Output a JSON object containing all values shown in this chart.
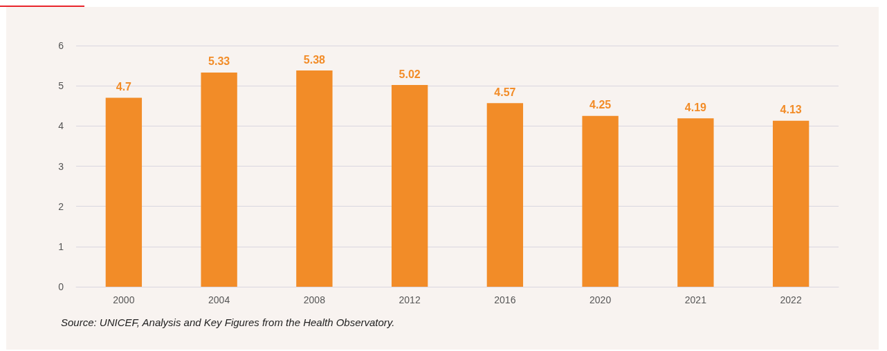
{
  "chart_data": {
    "type": "bar",
    "categories": [
      "2000",
      "2004",
      "2008",
      "2012",
      "2016",
      "2020",
      "2021",
      "2022"
    ],
    "values": [
      4.7,
      5.33,
      5.38,
      5.02,
      4.57,
      4.25,
      4.19,
      4.13
    ],
    "color": "#f28c28",
    "ylim": [
      0,
      6
    ],
    "yticks": [
      0,
      1,
      2,
      3,
      4,
      5,
      6
    ],
    "grid": "y",
    "data_labels": true,
    "annotations": [
      "Source: UNICEF, Analysis and Key Figures from the Health Observatory."
    ]
  }
}
